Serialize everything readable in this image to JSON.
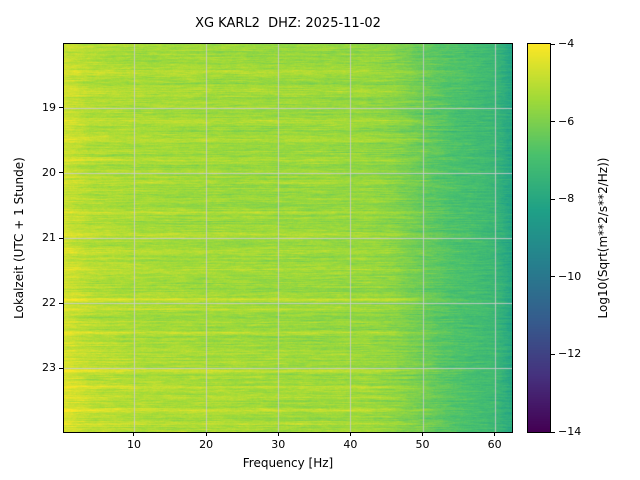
{
  "figure": {
    "title": "XG KARL2  DHZ: 2025-11-02",
    "xlabel": "Frequency [Hz]",
    "ylabel": "Lokalzeit (UTC + 1 Stunde)",
    "colorbar_label": "Log10(Sqrt(m**2/s**2/Hz))"
  },
  "chart_data": {
    "type": "heatmap",
    "subtype": "spectrogram",
    "title": "XG KARL2  DHZ: 2025-11-02",
    "xlabel": "Frequency [Hz]",
    "ylabel": "Lokalzeit (UTC + 1 Stunde)",
    "colorbar_label": "Log10(Sqrt(m**2/s**2/Hz))",
    "xlim": [
      0.3,
      62.4
    ],
    "ylim": [
      18.02,
      23.98
    ],
    "value_range": [
      -14,
      -4
    ],
    "grid": true,
    "grid_color": "#c8c8c8",
    "colormap": "viridis",
    "colormap_stops": [
      [
        0.0,
        "#440154"
      ],
      [
        0.1429,
        "#46327e"
      ],
      [
        0.2857,
        "#365c8d"
      ],
      [
        0.4286,
        "#277f8e"
      ],
      [
        0.5714,
        "#1fa187"
      ],
      [
        0.7143,
        "#4ac16d"
      ],
      [
        0.8571,
        "#a0da39"
      ],
      [
        1.0,
        "#fde725"
      ]
    ],
    "x_ticks": [
      {
        "v": 10,
        "label": "10"
      },
      {
        "v": 20,
        "label": "20"
      },
      {
        "v": 30,
        "label": "30"
      },
      {
        "v": 40,
        "label": "40"
      },
      {
        "v": 50,
        "label": "50"
      },
      {
        "v": 60,
        "label": "60"
      }
    ],
    "y_ticks": [
      {
        "v": 19,
        "label": "19"
      },
      {
        "v": 20,
        "label": "20"
      },
      {
        "v": 21,
        "label": "21"
      },
      {
        "v": 22,
        "label": "22"
      },
      {
        "v": 23,
        "label": "23"
      }
    ],
    "colorbar_ticks": [
      {
        "v": -4,
        "label": "−4"
      },
      {
        "v": -6,
        "label": "−6"
      },
      {
        "v": -8,
        "label": "−8"
      },
      {
        "v": -10,
        "label": "−10"
      },
      {
        "v": -12,
        "label": "−12"
      },
      {
        "v": -14,
        "label": "−14"
      }
    ],
    "freq_bins": [
      0.3,
      1.5,
      4,
      8,
      12,
      18,
      24,
      30,
      36,
      42,
      46,
      50,
      54,
      57,
      60,
      62.4
    ],
    "time_rows": [
      18.5,
      19.5,
      20.5,
      21.5,
      22.5,
      23.5
    ],
    "values": [
      [
        -4.8,
        -4.9,
        -5.2,
        -5.3,
        -5.4,
        -5.45,
        -5.5,
        -5.55,
        -5.6,
        -5.65,
        -5.85,
        -6.35,
        -6.8,
        -7.0,
        -7.3,
        -8.1
      ],
      [
        -4.75,
        -4.85,
        -5.15,
        -5.3,
        -5.35,
        -5.45,
        -5.5,
        -5.5,
        -5.55,
        -5.6,
        -5.8,
        -6.3,
        -6.8,
        -7.05,
        -7.35,
        -8.1
      ],
      [
        -4.8,
        -4.9,
        -5.2,
        -5.35,
        -5.4,
        -5.5,
        -5.55,
        -5.6,
        -5.6,
        -5.65,
        -5.85,
        -6.35,
        -6.85,
        -7.05,
        -7.3,
        -8.15
      ],
      [
        -4.75,
        -4.85,
        -5.1,
        -5.25,
        -5.35,
        -5.45,
        -5.5,
        -5.55,
        -5.6,
        -5.6,
        -5.8,
        -6.3,
        -6.8,
        -7.0,
        -7.3,
        -8.1
      ],
      [
        -4.7,
        -4.8,
        -5.1,
        -5.25,
        -5.3,
        -5.4,
        -5.45,
        -5.5,
        -5.55,
        -5.6,
        -5.75,
        -6.25,
        -6.75,
        -7.0,
        -7.25,
        -8.05
      ],
      [
        -4.6,
        -4.7,
        -5.0,
        -5.15,
        -5.25,
        -5.3,
        -5.4,
        -5.45,
        -5.5,
        -5.5,
        -5.7,
        -6.2,
        -6.7,
        -6.95,
        -7.2,
        -8.0
      ]
    ],
    "streaks": [
      [
        18.45,
        0.5
      ],
      [
        18.75,
        0.35
      ],
      [
        19.2,
        0.45
      ],
      [
        19.5,
        0.4
      ],
      [
        19.8,
        0.3
      ],
      [
        20.15,
        0.5
      ],
      [
        20.6,
        0.35
      ],
      [
        20.95,
        0.55
      ],
      [
        21.2,
        0.45
      ],
      [
        21.5,
        0.3
      ],
      [
        21.95,
        0.6
      ],
      [
        22.1,
        0.4
      ],
      [
        22.45,
        0.35
      ],
      [
        22.8,
        0.3
      ],
      [
        23.05,
        0.55
      ],
      [
        23.3,
        0.5
      ],
      [
        23.45,
        0.45
      ],
      [
        23.65,
        0.4
      ],
      [
        23.85,
        0.5
      ]
    ]
  }
}
